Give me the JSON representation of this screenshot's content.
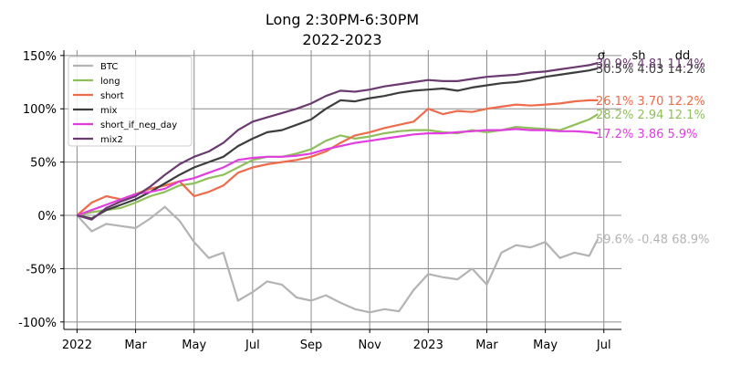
{
  "chart_data": {
    "type": "line",
    "title": "Long 2:30PM-6:30PM",
    "subtitle": "2022-2023",
    "x_ticks": [
      "2022",
      "Mar",
      "May",
      "Jul",
      "Sep",
      "Nov",
      "2023",
      "Mar",
      "May",
      "Jul"
    ],
    "y_ticks": [
      "-100%",
      "-50%",
      "0%",
      "50%",
      "100%",
      "150%"
    ],
    "ylim": [
      -107,
      155
    ],
    "xlim_months": [
      -0.45,
      18.6
    ],
    "grid": true,
    "legend_position": "top-left",
    "stats_header": [
      "σ",
      "sh",
      "dd"
    ],
    "x_months": [
      0,
      0.5,
      1,
      1.5,
      2,
      2.5,
      3,
      3.5,
      4,
      4.5,
      5,
      5.5,
      6,
      6.5,
      7,
      7.5,
      8,
      8.5,
      9,
      9.5,
      10,
      10.5,
      11,
      11.5,
      12,
      12.5,
      13,
      13.5,
      14,
      14.5,
      15,
      15.5,
      16,
      16.5,
      17,
      17.5,
      17.8
    ],
    "series": [
      {
        "name": "BTC",
        "color": "#b3b3b3",
        "annotation": "59.6% -0.48 68.9%",
        "values": [
          0,
          -15,
          -8,
          -10,
          -12,
          -3,
          8,
          -5,
          -25,
          -40,
          -35,
          -80,
          -72,
          -62,
          -65,
          -77,
          -80,
          -75,
          -82,
          -88,
          -91,
          -88,
          -90,
          -70,
          -55,
          -58,
          -60,
          -50,
          -65,
          -35,
          -28,
          -30,
          -25,
          -40,
          -35,
          -38,
          -22
        ]
      },
      {
        "name": "long",
        "color": "#8fbf5a",
        "annotation": "28.2% 2.94 12.1%",
        "values": [
          0,
          3,
          5,
          7,
          12,
          18,
          22,
          28,
          30,
          35,
          38,
          45,
          52,
          55,
          55,
          58,
          62,
          70,
          75,
          72,
          74,
          77,
          79,
          80,
          80,
          78,
          77,
          80,
          78,
          80,
          83,
          82,
          81,
          80,
          85,
          90,
          95
        ]
      },
      {
        "name": "short",
        "color": "#ee6b4b",
        "annotation": "26.1% 3.70 12.2%",
        "values": [
          0,
          12,
          18,
          15,
          20,
          25,
          28,
          32,
          18,
          22,
          28,
          40,
          45,
          48,
          50,
          52,
          55,
          60,
          68,
          75,
          78,
          82,
          85,
          88,
          100,
          95,
          98,
          97,
          100,
          102,
          104,
          103,
          104,
          105,
          107,
          108,
          108
        ]
      },
      {
        "name": "mix",
        "color": "#3d3d3d",
        "annotation": "30.5% 4.03 14.2%",
        "values": [
          0,
          -3,
          5,
          10,
          15,
          22,
          30,
          38,
          45,
          50,
          55,
          65,
          72,
          78,
          80,
          85,
          90,
          100,
          108,
          107,
          110,
          112,
          115,
          117,
          118,
          119,
          117,
          120,
          122,
          124,
          125,
          127,
          130,
          132,
          134,
          136,
          138
        ]
      },
      {
        "name": "short_if_neg_day",
        "color": "#e13ee0",
        "annotation": "17.2% 3.86 5.9%",
        "values": [
          0,
          5,
          10,
          15,
          20,
          22,
          25,
          32,
          35,
          40,
          45,
          52,
          54,
          55,
          55,
          56,
          58,
          62,
          65,
          68,
          70,
          72,
          74,
          76,
          77,
          77,
          78,
          79,
          80,
          80,
          81,
          80,
          80,
          79,
          79,
          78,
          77
        ]
      },
      {
        "name": "mix2",
        "color": "#6b3a70",
        "annotation": "30.9% 4.81 11.4%",
        "values": [
          0,
          -4,
          7,
          13,
          18,
          27,
          38,
          48,
          55,
          60,
          68,
          80,
          88,
          92,
          96,
          100,
          105,
          112,
          117,
          116,
          118,
          121,
          123,
          125,
          127,
          126,
          126,
          128,
          130,
          131,
          132,
          134,
          135,
          137,
          139,
          141,
          143
        ]
      }
    ]
  }
}
